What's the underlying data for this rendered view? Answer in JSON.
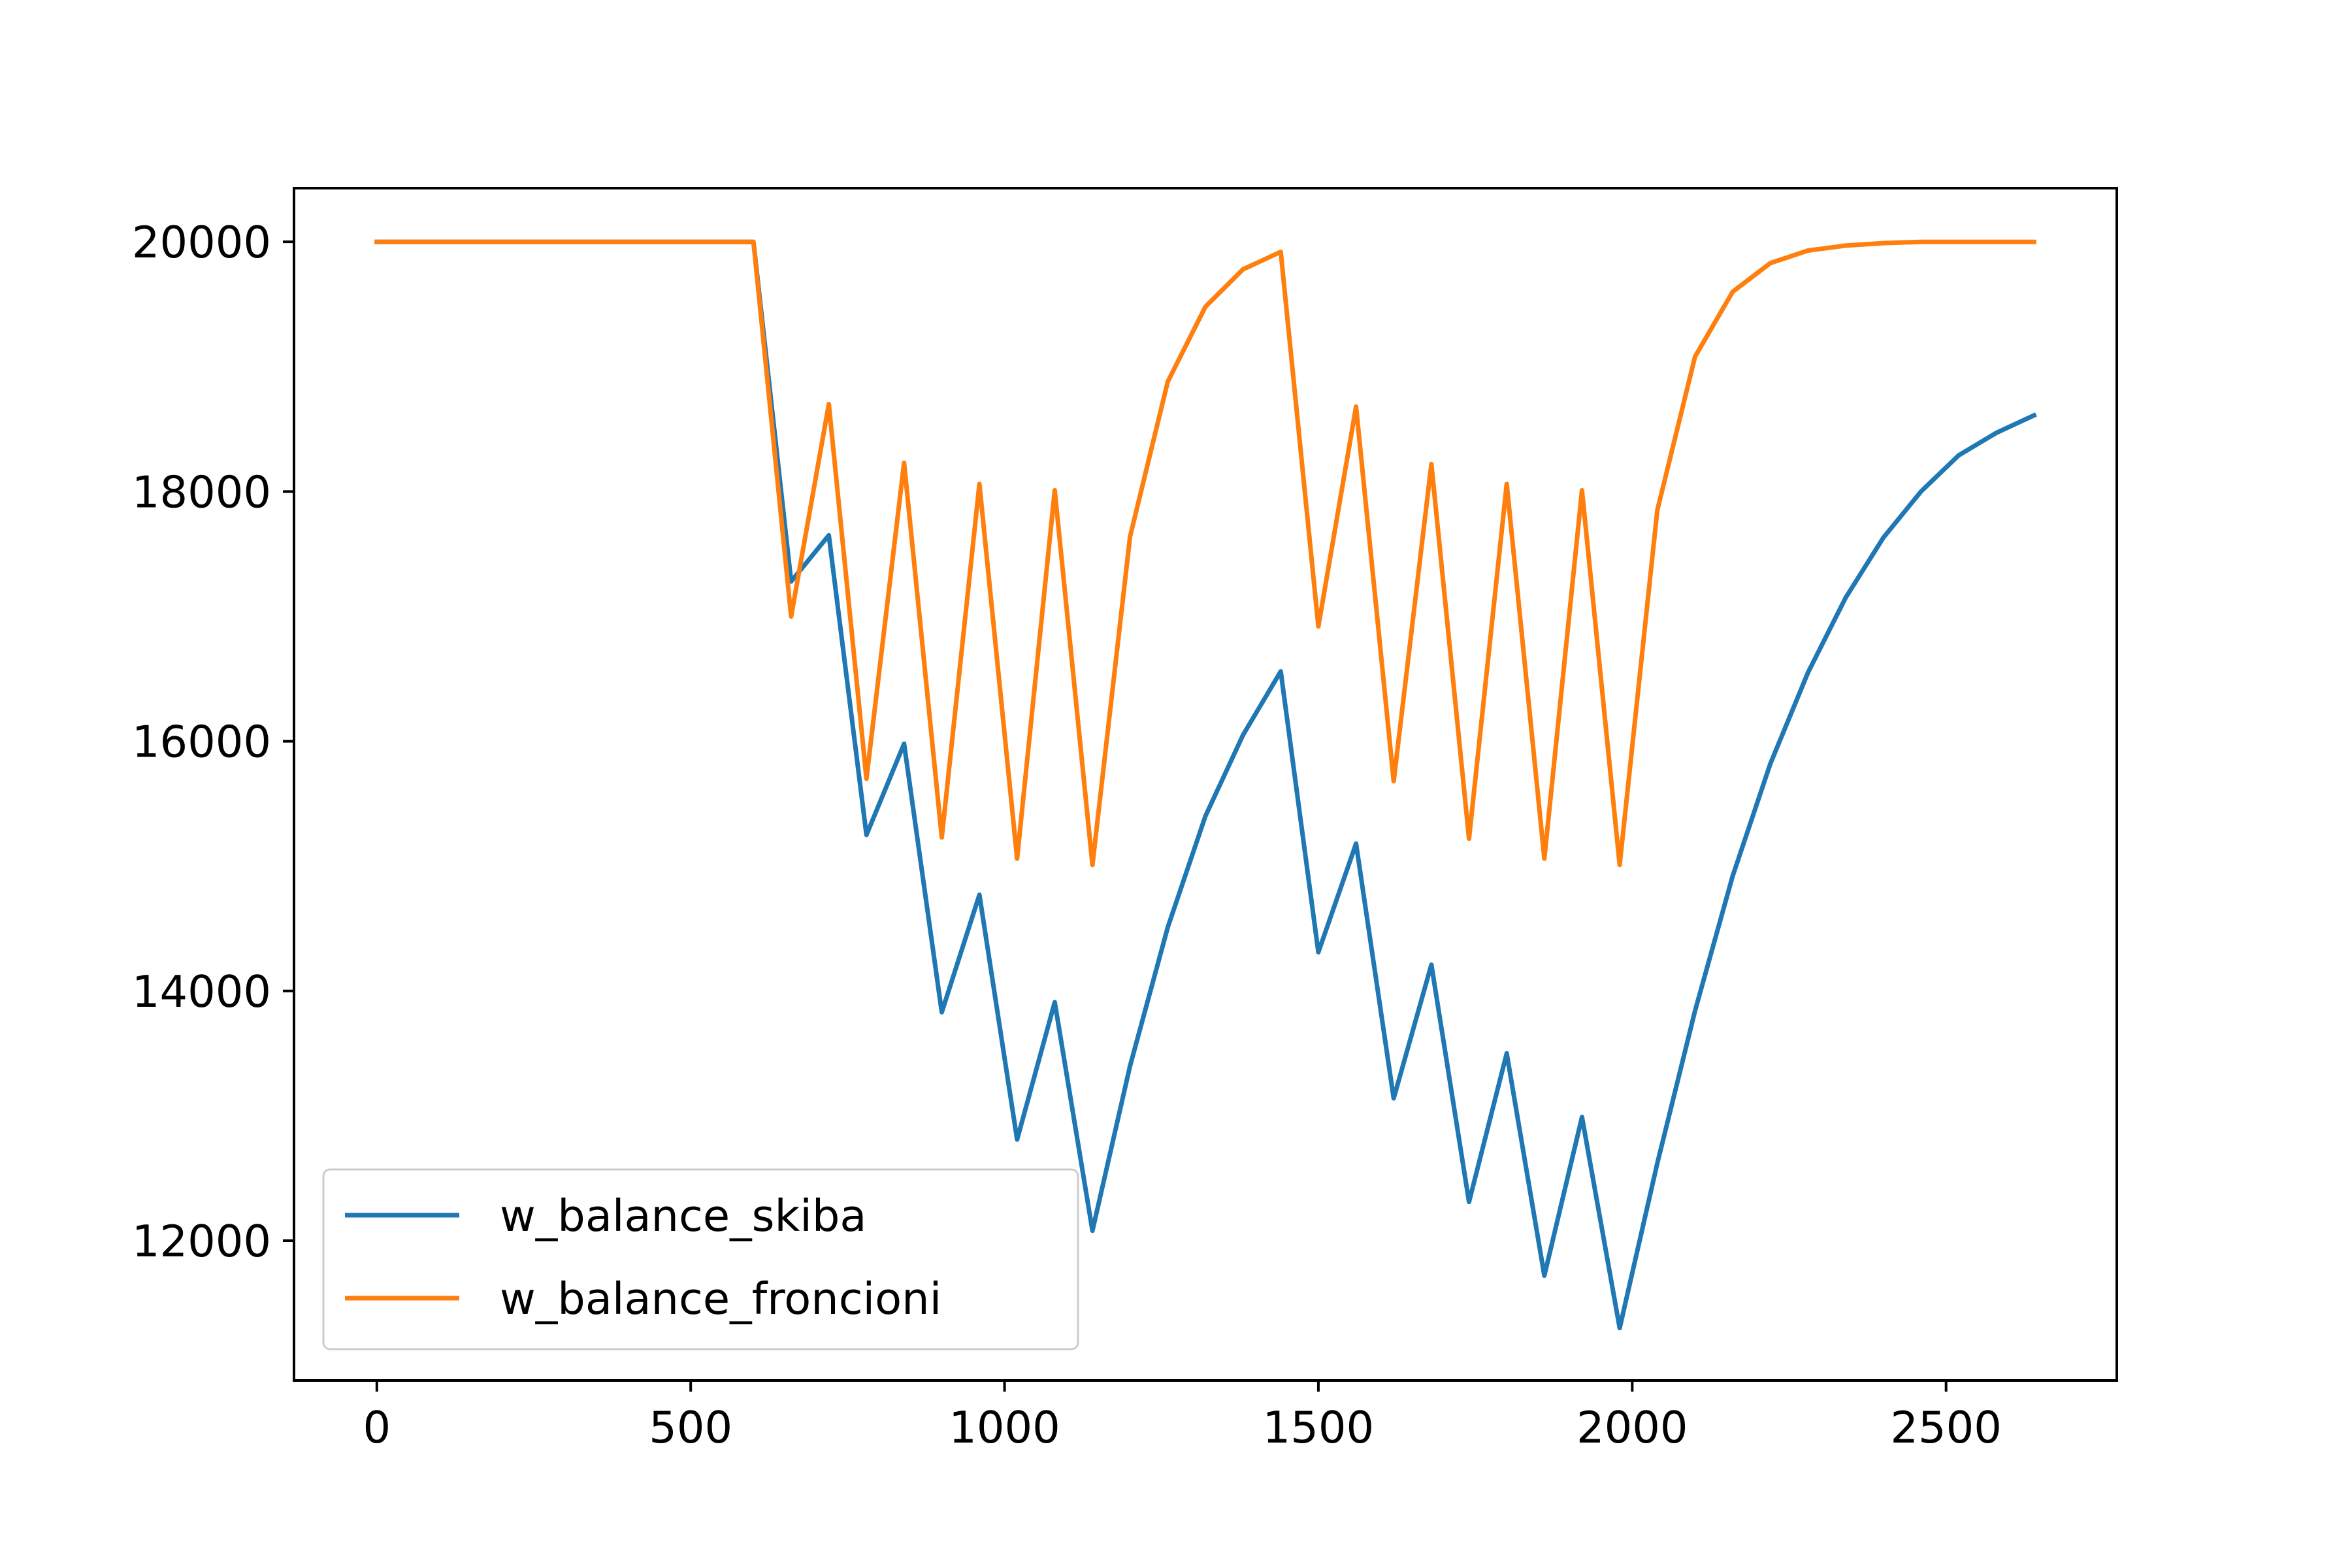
{
  "chart_data": {
    "type": "line",
    "title": "",
    "xlabel": "",
    "ylabel": "",
    "xlim": [
      -132,
      2772
    ],
    "ylim": [
      10880,
      20430
    ],
    "x_ticks": [
      0,
      500,
      1000,
      1500,
      2000,
      2500
    ],
    "x_tick_labels": [
      "0",
      "500",
      "1000",
      "1500",
      "2000",
      "2500"
    ],
    "y_ticks": [
      12000,
      14000,
      16000,
      18000,
      20000
    ],
    "y_tick_labels": [
      "12000",
      "14000",
      "16000",
      "18000",
      "20000"
    ],
    "grid": false,
    "legend_position": "lower-left",
    "series": [
      {
        "name": "w_balance_skiba",
        "color": "#1f77b4",
        "points": [
          [
            0,
            20000
          ],
          [
            600,
            20000
          ],
          [
            660,
            17280
          ],
          [
            720,
            17650
          ],
          [
            780,
            15250
          ],
          [
            840,
            15980
          ],
          [
            900,
            13830
          ],
          [
            960,
            14770
          ],
          [
            1020,
            12810
          ],
          [
            1080,
            13910
          ],
          [
            1140,
            12080
          ],
          [
            1200,
            13400
          ],
          [
            1260,
            14510
          ],
          [
            1320,
            15400
          ],
          [
            1380,
            16050
          ],
          [
            1440,
            16560
          ],
          [
            1500,
            14310
          ],
          [
            1560,
            15180
          ],
          [
            1620,
            13140
          ],
          [
            1680,
            14210
          ],
          [
            1740,
            12310
          ],
          [
            1800,
            13500
          ],
          [
            1860,
            11720
          ],
          [
            1920,
            12990
          ],
          [
            1980,
            11300
          ],
          [
            2040,
            12620
          ],
          [
            2100,
            13840
          ],
          [
            2160,
            14920
          ],
          [
            2220,
            15820
          ],
          [
            2280,
            16550
          ],
          [
            2340,
            17150
          ],
          [
            2400,
            17630
          ],
          [
            2460,
            18000
          ],
          [
            2520,
            18290
          ],
          [
            2580,
            18470
          ],
          [
            2640,
            18610
          ]
        ]
      },
      {
        "name": "w_balance_froncioni",
        "color": "#ff7f0e",
        "points": [
          [
            0,
            20000
          ],
          [
            600,
            20000
          ],
          [
            660,
            17000
          ],
          [
            720,
            18700
          ],
          [
            780,
            15700
          ],
          [
            840,
            18230
          ],
          [
            900,
            15230
          ],
          [
            960,
            18060
          ],
          [
            1020,
            15060
          ],
          [
            1080,
            18010
          ],
          [
            1140,
            15010
          ],
          [
            1200,
            17640
          ],
          [
            1260,
            18880
          ],
          [
            1320,
            19480
          ],
          [
            1380,
            19780
          ],
          [
            1440,
            19920
          ],
          [
            1500,
            16920
          ],
          [
            1560,
            18680
          ],
          [
            1620,
            15680
          ],
          [
            1680,
            18220
          ],
          [
            1740,
            15220
          ],
          [
            1800,
            18060
          ],
          [
            1860,
            15060
          ],
          [
            1920,
            18010
          ],
          [
            1980,
            15010
          ],
          [
            2040,
            17850
          ],
          [
            2100,
            19080
          ],
          [
            2160,
            19600
          ],
          [
            2220,
            19830
          ],
          [
            2280,
            19930
          ],
          [
            2340,
            19970
          ],
          [
            2400,
            19990
          ],
          [
            2460,
            20000
          ],
          [
            2520,
            20000
          ],
          [
            2580,
            20000
          ],
          [
            2640,
            20000
          ]
        ]
      }
    ]
  }
}
